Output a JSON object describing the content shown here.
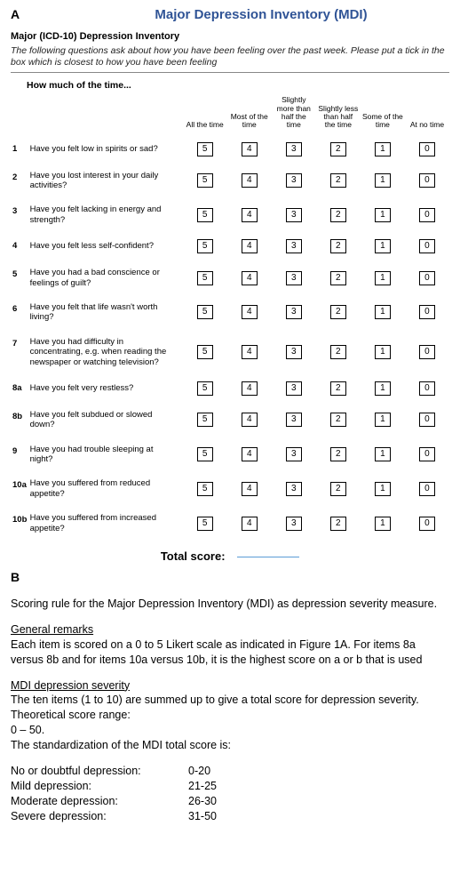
{
  "panelA": "A",
  "panelB": "B",
  "title": "Major Depression Inventory (MDI)",
  "subtitle": "Major (ICD-10) Depression Inventory",
  "instructions": "The following questions ask about how you have been feeling over the past week. Please put a tick in the box which is closest to how you have been feeling",
  "prompt": "How much of the time...",
  "headers": {
    "c0": "All the time",
    "c1": "Most of the time",
    "c2": "Slightly more than half the time",
    "c3": "Slightly less than half the time",
    "c4": "Some of the time",
    "c5": "At no time"
  },
  "scores": {
    "s0": "5",
    "s1": "4",
    "s2": "3",
    "s3": "2",
    "s4": "1",
    "s5": "0"
  },
  "items": [
    {
      "n": "1",
      "q": "Have you felt low in spirits or sad?"
    },
    {
      "n": "2",
      "q": "Have you lost interest in your daily activities?"
    },
    {
      "n": "3",
      "q": "Have you felt lacking in energy and strength?"
    },
    {
      "n": "4",
      "q": "Have you felt less self-confident?"
    },
    {
      "n": "5",
      "q": "Have you had a bad conscience or feelings of guilt?"
    },
    {
      "n": "6",
      "q": "Have you felt that life wasn't worth living?"
    },
    {
      "n": "7",
      "q": "Have you had difficulty in concentrating, e.g. when reading the newspaper or watching television?"
    },
    {
      "n": "8a",
      "q": "Have you felt very restless?"
    },
    {
      "n": "8b",
      "q": "Have you felt subdued or slowed down?"
    },
    {
      "n": "9",
      "q": "Have you had trouble sleeping at night?"
    },
    {
      "n": "10a",
      "q": "Have you suffered from reduced appetite?"
    },
    {
      "n": "10b",
      "q": "Have you suffered from increased appetite?"
    }
  ],
  "totalLabel": "Total score:",
  "sectionB": {
    "heading": "Scoring rule for the Major Depression Inventory (MDI) as depression severity measure.",
    "general_h": "General remarks",
    "general_t": "Each item is scored on a 0 to 5 Likert scale as indicated in Figure 1A. For items 8a versus 8b and for items 10a versus 10b, it is the highest score on a or b that is used",
    "sev_h": "MDI depression severity",
    "sev_t1": "The ten items (1 to 10) are summed up to give a total score for depression severity. Theoretical score range:",
    "sev_range": "0 – 50.",
    "sev_t2": "The standardization of the MDI total score is:",
    "levels": [
      {
        "label": "No or doubtful depression:",
        "range": "0-20"
      },
      {
        "label": "Mild depression:",
        "range": "21-25"
      },
      {
        "label": "Moderate depression:",
        "range": "26-30"
      },
      {
        "label": "Severe depression:",
        "range": "31-50"
      }
    ]
  },
  "style": {
    "title_color": "#305496",
    "underline_color": "#5b9bd5",
    "background": "#ffffff",
    "text_color": "#000000",
    "box_border": "#000000",
    "font_family": "Arial, Helvetica, sans-serif"
  }
}
